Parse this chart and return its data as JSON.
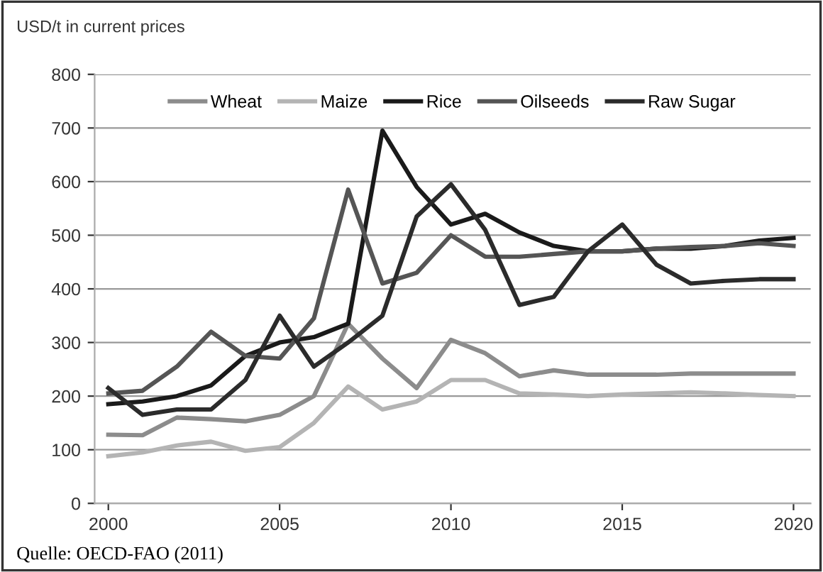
{
  "chart_data": {
    "type": "line",
    "ylabel": "USD/t in current prices",
    "annotations": [
      "Quelle: OECD-FAO (2011)"
    ],
    "x": [
      2000,
      2001,
      2002,
      2003,
      2004,
      2005,
      2006,
      2007,
      2008,
      2009,
      2010,
      2011,
      2012,
      2013,
      2014,
      2015,
      2016,
      2017,
      2018,
      2019,
      2020
    ],
    "series": [
      {
        "name": "Wheat",
        "color": "#8c8c8c",
        "values": [
          128,
          127,
          160,
          157,
          153,
          165,
          200,
          335,
          270,
          215,
          305,
          280,
          237,
          248,
          240,
          240,
          240,
          242,
          242,
          242,
          242
        ]
      },
      {
        "name": "Maize",
        "color": "#b4b4b4",
        "values": [
          88,
          95,
          108,
          115,
          98,
          105,
          150,
          218,
          175,
          190,
          230,
          230,
          205,
          203,
          200,
          203,
          205,
          207,
          205,
          202,
          200
        ]
      },
      {
        "name": "Rice",
        "color": "#1a1a1a",
        "values": [
          185,
          190,
          200,
          220,
          275,
          300,
          310,
          335,
          695,
          590,
          520,
          540,
          505,
          480,
          470,
          470,
          475,
          475,
          480,
          490,
          495
        ]
      },
      {
        "name": "Oilseeds",
        "color": "#555555",
        "values": [
          205,
          210,
          255,
          320,
          275,
          270,
          345,
          585,
          410,
          430,
          500,
          460,
          460,
          465,
          470,
          470,
          475,
          478,
          480,
          485,
          480
        ]
      },
      {
        "name": "Raw Sugar",
        "color": "#2b2b2b",
        "values": [
          215,
          165,
          175,
          175,
          230,
          350,
          255,
          300,
          350,
          535,
          595,
          510,
          370,
          385,
          470,
          520,
          445,
          410,
          415,
          418,
          418
        ]
      }
    ],
    "xlim": [
      1999.6,
      2020.5
    ],
    "xticks": [
      2000,
      2005,
      2010,
      2015,
      2020
    ],
    "ylim": [
      0,
      800
    ],
    "yticks": [
      0,
      100,
      200,
      300,
      400,
      500,
      600,
      700,
      800
    ],
    "grid": "y",
    "legend": "top",
    "marker": "none",
    "line_style": "solid"
  }
}
